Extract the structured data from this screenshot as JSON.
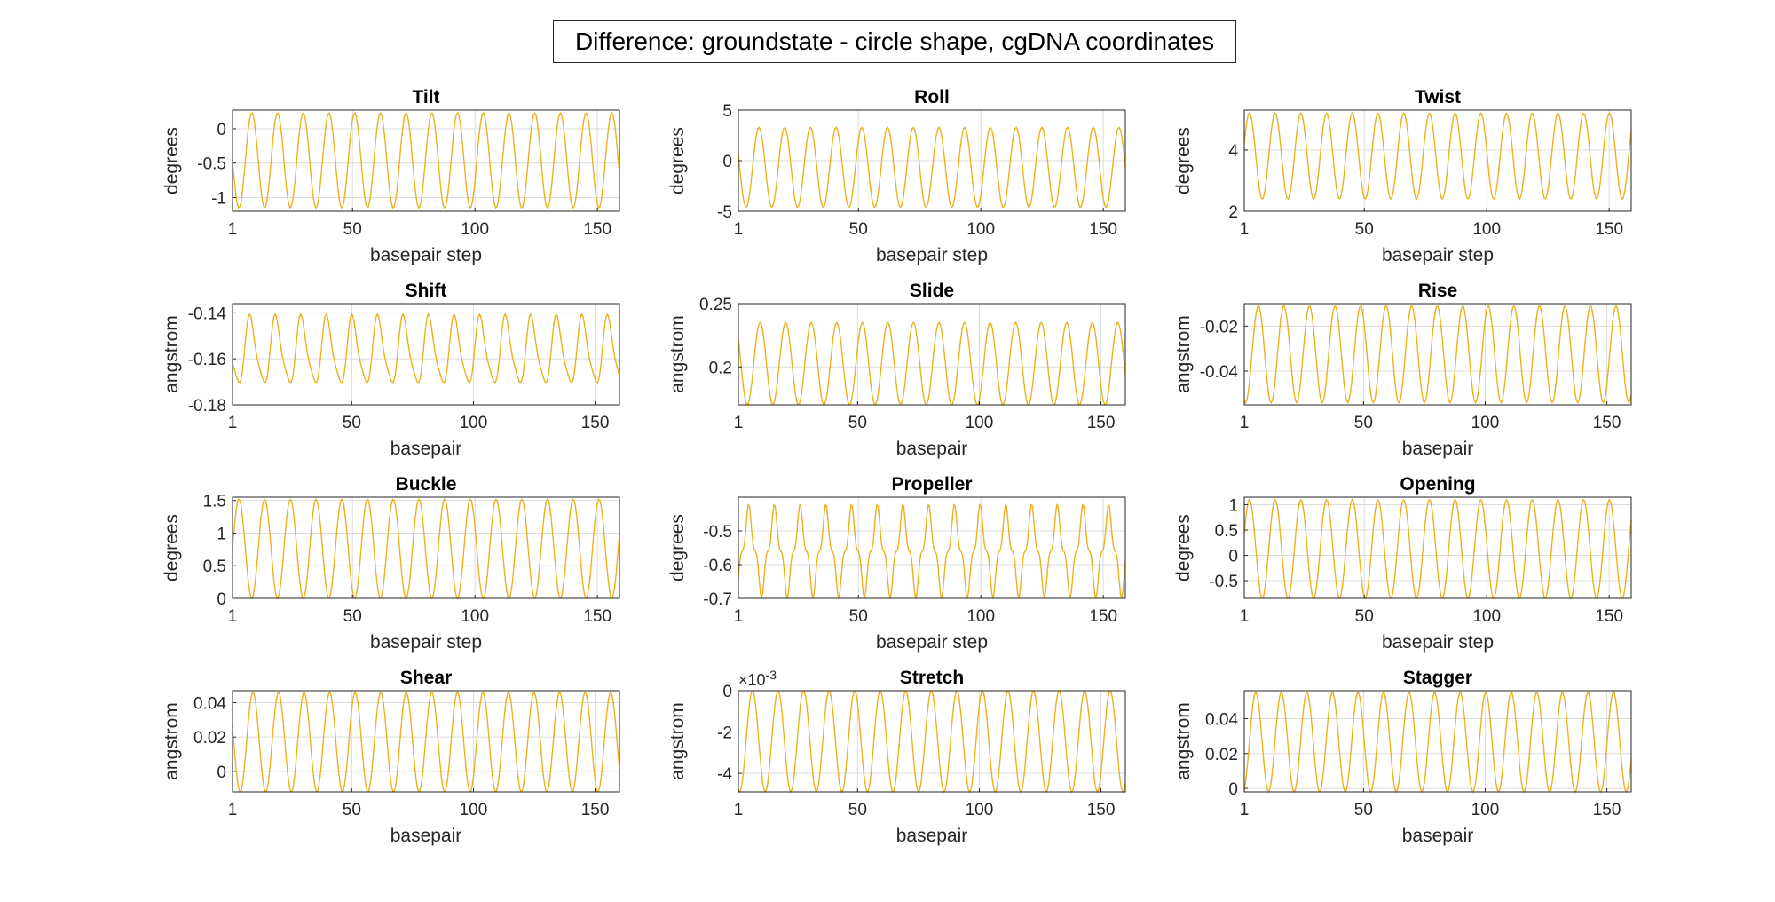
{
  "figure": {
    "title": "Difference: groundstate - circle shape, cgDNA coordinates",
    "line_color": "#EDB120"
  },
  "chart_data": [
    {
      "type": "line",
      "title": "Tilt",
      "xlabel": "basepair step",
      "ylabel": "degrees",
      "xlim": [
        1,
        159
      ],
      "ylim": [
        -1.2,
        0.27
      ],
      "xticks": [
        1,
        50,
        100,
        150
      ],
      "yticks": [
        -1,
        -0.5,
        0
      ],
      "ytick_labels": [
        "-1",
        "-0.5",
        "0"
      ],
      "series": [
        {
          "min": -1.15,
          "max": 0.23,
          "period": 10.5,
          "phase": 0.25
        }
      ]
    },
    {
      "type": "line",
      "title": "Roll",
      "xlabel": "basepair step",
      "ylabel": "degrees",
      "xlim": [
        1,
        159
      ],
      "ylim": [
        -5,
        5
      ],
      "xticks": [
        1,
        50,
        100,
        150
      ],
      "yticks": [
        -5,
        0,
        5
      ],
      "ytick_labels": [
        "-5",
        "0",
        "5"
      ],
      "series": [
        {
          "min": -4.6,
          "max": 3.3,
          "period": 10.5,
          "phase": 0.2
        }
      ]
    },
    {
      "type": "line",
      "title": "Twist",
      "xlabel": "basepair step",
      "ylabel": "degrees",
      "xlim": [
        1,
        159
      ],
      "ylim": [
        2,
        5.3
      ],
      "xticks": [
        1,
        50,
        100,
        150
      ],
      "yticks": [
        2,
        4
      ],
      "ytick_labels": [
        "2",
        "4"
      ],
      "series": [
        {
          "min": 2.4,
          "max": 5.2,
          "period": 10.5,
          "phase": 0.8
        }
      ]
    },
    {
      "type": "line",
      "title": "Shift",
      "xlabel": "basepair",
      "ylabel": "angstrom",
      "xlim": [
        1,
        160
      ],
      "ylim": [
        -0.18,
        -0.136
      ],
      "xticks": [
        1,
        50,
        100,
        150
      ],
      "yticks": [
        -0.18,
        -0.16,
        -0.14
      ],
      "ytick_labels": [
        "-0.18",
        "-0.16",
        "-0.14"
      ],
      "series": [
        {
          "min": -0.174,
          "max": -0.14,
          "period": 10.5,
          "phase": 0.3,
          "skew": 0.6
        }
      ]
    },
    {
      "type": "line",
      "title": "Slide",
      "xlabel": "basepair",
      "ylabel": "angstrom",
      "xlim": [
        1,
        160
      ],
      "ylim": [
        0.17,
        0.25
      ],
      "xticks": [
        1,
        50,
        100,
        150
      ],
      "yticks": [
        0.2,
        0.25
      ],
      "ytick_labels": [
        "0.2",
        "0.25"
      ],
      "series": [
        {
          "min": 0.17,
          "max": 0.235,
          "period": 10.5,
          "phase": 0.15
        }
      ]
    },
    {
      "type": "line",
      "title": "Rise",
      "xlabel": "basepair",
      "ylabel": "angstrom",
      "xlim": [
        1,
        160
      ],
      "ylim": [
        -0.055,
        -0.01
      ],
      "xticks": [
        1,
        50,
        100,
        150
      ],
      "yticks": [
        -0.04,
        -0.02
      ],
      "ytick_labels": [
        "-0.04",
        "-0.02"
      ],
      "series": [
        {
          "min": -0.054,
          "max": -0.011,
          "period": 10.5,
          "phase": 0.45
        }
      ]
    },
    {
      "type": "line",
      "title": "Buckle",
      "xlabel": "basepair step",
      "ylabel": "degrees",
      "xlim": [
        1,
        159
      ],
      "ylim": [
        0,
        1.55
      ],
      "xticks": [
        1,
        50,
        100,
        150
      ],
      "yticks": [
        0,
        0.5,
        1,
        1.5
      ],
      "ytick_labels": [
        "0",
        "0.5",
        "1",
        "1.5"
      ],
      "series": [
        {
          "min": 0.0,
          "max": 1.52,
          "period": 10.5,
          "phase": 0.75
        }
      ]
    },
    {
      "type": "line",
      "title": "Propeller",
      "xlabel": "basepair step",
      "ylabel": "degrees",
      "xlim": [
        1,
        159
      ],
      "ylim": [
        -0.7,
        -0.4
      ],
      "xticks": [
        1,
        50,
        100,
        150
      ],
      "yticks": [
        -0.7,
        -0.6,
        -0.5
      ],
      "ytick_labels": [
        "-0.7",
        "-0.6",
        "-0.5"
      ],
      "series": [
        {
          "min": -0.7,
          "max": -0.42,
          "period": 10.5,
          "phase": 0.6,
          "shoulder": 0.3
        }
      ]
    },
    {
      "type": "line",
      "title": "Opening",
      "xlabel": "basepair step",
      "ylabel": "degrees",
      "xlim": [
        1,
        159
      ],
      "ylim": [
        -0.85,
        1.15
      ],
      "xticks": [
        1,
        50,
        100,
        150
      ],
      "yticks": [
        -0.5,
        0,
        0.5,
        1
      ],
      "ytick_labels": [
        "-0.5",
        "0",
        "0.5",
        "1"
      ],
      "series": [
        {
          "min": -0.85,
          "max": 1.1,
          "period": 10.5,
          "phase": 0.8
        }
      ]
    },
    {
      "type": "line",
      "title": "Shear",
      "xlabel": "basepair",
      "ylabel": "angstrom",
      "xlim": [
        1,
        160
      ],
      "ylim": [
        -0.012,
        0.047
      ],
      "xticks": [
        1,
        50,
        100,
        150
      ],
      "yticks": [
        0,
        0.02,
        0.04
      ],
      "ytick_labels": [
        "0",
        "0.02",
        "0.04"
      ],
      "series": [
        {
          "min": -0.012,
          "max": 0.046,
          "period": 10.5,
          "phase": 0.2
        }
      ]
    },
    {
      "type": "line",
      "title": "Stretch",
      "xlabel": "basepair",
      "ylabel": "angstrom",
      "xlim": [
        1,
        160
      ],
      "ylim": [
        -0.0049,
        0
      ],
      "xticks": [
        1,
        50,
        100,
        150
      ],
      "yticks": [
        -0.004,
        -0.002,
        0
      ],
      "ytick_labels": [
        "-4",
        "-2",
        "0"
      ],
      "exponent_label": "×10-3",
      "series": [
        {
          "min": -0.0049,
          "max": 0.0,
          "period": 10.5,
          "phase": 0.45
        }
      ]
    },
    {
      "type": "line",
      "title": "Stagger",
      "xlabel": "basepair",
      "ylabel": "angstrom",
      "xlim": [
        1,
        160
      ],
      "ylim": [
        -0.002,
        0.056
      ],
      "xticks": [
        1,
        50,
        100,
        150
      ],
      "yticks": [
        0,
        0.02,
        0.04
      ],
      "ytick_labels": [
        "0",
        "0.02",
        "0.04"
      ],
      "series": [
        {
          "min": -0.002,
          "max": 0.055,
          "period": 10.5,
          "phase": 0.55
        }
      ]
    }
  ]
}
